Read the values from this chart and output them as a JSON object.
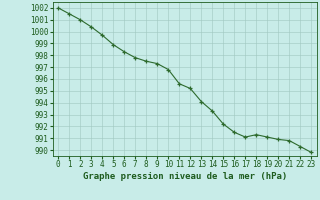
{
  "x": [
    0,
    1,
    2,
    3,
    4,
    5,
    6,
    7,
    8,
    9,
    10,
    11,
    12,
    13,
    14,
    15,
    16,
    17,
    18,
    19,
    20,
    21,
    22,
    23
  ],
  "y": [
    1002.0,
    1001.5,
    1001.0,
    1000.4,
    999.7,
    998.9,
    998.3,
    997.8,
    997.5,
    997.3,
    996.8,
    995.6,
    995.2,
    994.1,
    993.3,
    992.2,
    991.5,
    991.1,
    991.3,
    991.1,
    990.9,
    990.8,
    990.3,
    989.8
  ],
  "line_color": "#2d6a2d",
  "marker_color": "#2d6a2d",
  "bg_color": "#c8ece8",
  "grid_color": "#a0c8c0",
  "xlabel": "Graphe pression niveau de la mer (hPa)",
  "xlabel_color": "#1e5c1e",
  "ytick_labels": [
    "990",
    "991",
    "992",
    "993",
    "994",
    "995",
    "996",
    "997",
    "998",
    "999",
    "1000",
    "1001",
    "1002"
  ],
  "ytick_values": [
    990,
    991,
    992,
    993,
    994,
    995,
    996,
    997,
    998,
    999,
    1000,
    1001,
    1002
  ],
  "ylim": [
    989.5,
    1002.5
  ],
  "xlim": [
    -0.5,
    23.5
  ],
  "tick_color": "#1e5c1e",
  "tick_fontsize": 5.5,
  "xlabel_fontsize": 6.5
}
